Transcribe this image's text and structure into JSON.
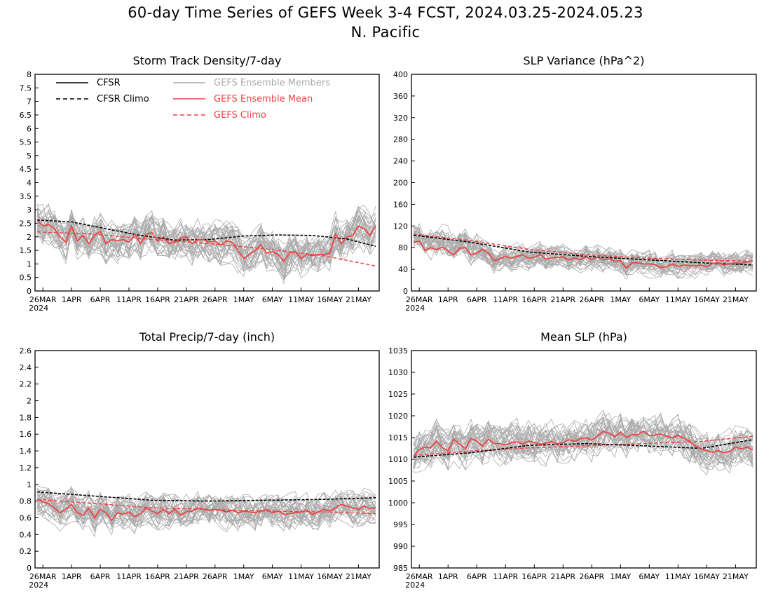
{
  "header": {
    "title_line1": "60-day Time Series of GEFS Week 3-4 FCST, 2024.03.25-2024.05.23",
    "title_line2": "N. Pacific"
  },
  "colors": {
    "cfsr": "#000000",
    "members": "#aaaaaa",
    "ens_mean": "#ee4444",
    "gefs_climo": "#ee4444"
  },
  "legend": {
    "cfsr": "CFSR",
    "cfsr_climo": "CFSR Climo",
    "members": "GEFS Ensemble Members",
    "ens_mean": "GEFS Ensemble Mean",
    "gefs_climo": "GEFS Climo"
  },
  "chart_data": [
    {
      "id": "storm",
      "type": "line",
      "title": "Storm Track Density/7-day",
      "x_ticks": [
        "26MAR",
        "1APR",
        "6APR",
        "11APR",
        "16APR",
        "21APR",
        "26APR",
        "1MAY",
        "6MAY",
        "11MAY",
        "16MAY",
        "21MAY"
      ],
      "x_year_label": "2024",
      "ylim": [
        0,
        8
      ],
      "y_ticks": [
        "0",
        "0.5",
        "1",
        "1.5",
        "2",
        "2.5",
        "3",
        "3.5",
        "4",
        "4.5",
        "5",
        "5.5",
        "6",
        "6.5",
        "7",
        "7.5",
        "8"
      ],
      "member_count": 31,
      "cfsr_climo": [
        [
          0,
          2.62
        ],
        [
          6,
          2.55
        ],
        [
          12,
          2.3
        ],
        [
          18,
          2.05
        ],
        [
          24,
          1.88
        ],
        [
          30,
          1.9
        ],
        [
          36,
          2.03
        ],
        [
          42,
          2.07
        ],
        [
          48,
          2.05
        ],
        [
          54,
          1.92
        ],
        [
          59,
          1.65
        ]
      ],
      "gefs_climo": [
        [
          0,
          2.18
        ],
        [
          10,
          2.1
        ],
        [
          20,
          1.9
        ],
        [
          30,
          1.75
        ],
        [
          40,
          1.55
        ],
        [
          50,
          1.3
        ],
        [
          59,
          0.92
        ]
      ],
      "ens_mean": [
        2.6,
        2.4,
        2.45,
        2.3,
        2.0,
        1.8,
        2.4,
        1.85,
        2.05,
        1.75,
        2.05,
        2.2,
        1.75,
        1.9,
        1.85,
        1.9,
        1.8,
        2.1,
        1.75,
        2.1,
        2.15,
        1.85,
        2.0,
        1.75,
        1.8,
        1.95,
        2.0,
        1.75,
        1.9,
        1.9,
        1.8,
        1.85,
        1.7,
        1.85,
        1.8,
        1.5,
        1.2,
        1.35,
        1.5,
        1.7,
        1.4,
        1.45,
        1.35,
        1.1,
        1.4,
        1.45,
        1.2,
        1.35,
        1.3,
        1.35,
        1.35,
        1.4,
        2.1,
        1.75,
        2.0,
        2.05,
        2.4,
        2.3,
        2.05,
        2.4
      ]
    },
    {
      "id": "slpvar",
      "type": "line",
      "title": "SLP Variance (hPa^2)",
      "x_ticks": [
        "26MAR",
        "1APR",
        "6APR",
        "11APR",
        "16APR",
        "21APR",
        "26APR",
        "1MAY",
        "6MAY",
        "11MAY",
        "16MAY",
        "21MAY"
      ],
      "x_year_label": "2024",
      "ylim": [
        0,
        400
      ],
      "y_ticks": [
        "0",
        "40",
        "80",
        "120",
        "160",
        "200",
        "240",
        "280",
        "320",
        "360",
        "400"
      ],
      "member_count": 31,
      "cfsr_climo": [
        [
          0,
          103
        ],
        [
          10,
          90
        ],
        [
          20,
          72
        ],
        [
          30,
          64
        ],
        [
          40,
          58
        ],
        [
          50,
          52
        ],
        [
          59,
          48
        ]
      ],
      "gefs_climo": [
        [
          0,
          105
        ],
        [
          10,
          93
        ],
        [
          20,
          77
        ],
        [
          30,
          67
        ],
        [
          40,
          61
        ],
        [
          50,
          57
        ],
        [
          59,
          55
        ]
      ],
      "ens_mean": [
        90,
        92,
        75,
        80,
        76,
        81,
        74,
        66,
        79,
        80,
        67,
        70,
        77,
        70,
        56,
        59,
        64,
        60,
        64,
        67,
        60,
        62,
        67,
        59,
        61,
        62,
        63,
        57,
        61,
        58,
        63,
        58,
        62,
        58,
        59,
        55,
        56,
        42,
        52,
        52,
        50,
        50,
        49,
        43,
        45,
        50,
        45,
        48,
        47,
        46,
        48,
        45,
        51,
        52,
        48,
        50,
        52,
        51,
        54,
        55
      ]
    },
    {
      "id": "precip",
      "type": "line",
      "title": "Total Precip/7-day (inch)",
      "x_ticks": [
        "26MAR",
        "1APR",
        "6APR",
        "11APR",
        "16APR",
        "21APR",
        "26APR",
        "1MAY",
        "6MAY",
        "11MAY",
        "16MAY",
        "21MAY"
      ],
      "x_year_label": "2024",
      "ylim": [
        0,
        2.6
      ],
      "y_ticks": [
        "0",
        "0.2",
        "0.4",
        "0.6",
        "0.8",
        "1",
        "1.2",
        "1.4",
        "1.6",
        "1.8",
        "2",
        "2.2",
        "2.4",
        "2.6"
      ],
      "member_count": 31,
      "cfsr_climo": [
        [
          0,
          0.91
        ],
        [
          10,
          0.86
        ],
        [
          20,
          0.81
        ],
        [
          30,
          0.8
        ],
        [
          40,
          0.81
        ],
        [
          50,
          0.82
        ],
        [
          59,
          0.84
        ]
      ],
      "gefs_climo": [
        [
          0,
          0.82
        ],
        [
          10,
          0.77
        ],
        [
          20,
          0.72
        ],
        [
          30,
          0.7
        ],
        [
          40,
          0.68
        ],
        [
          50,
          0.67
        ],
        [
          59,
          0.65
        ]
      ],
      "ens_mean": [
        0.82,
        0.79,
        0.77,
        0.72,
        0.66,
        0.7,
        0.76,
        0.66,
        0.63,
        0.72,
        0.6,
        0.7,
        0.66,
        0.57,
        0.66,
        0.64,
        0.67,
        0.61,
        0.65,
        0.72,
        0.68,
        0.65,
        0.7,
        0.65,
        0.7,
        0.63,
        0.67,
        0.68,
        0.72,
        0.7,
        0.69,
        0.7,
        0.69,
        0.67,
        0.69,
        0.66,
        0.68,
        0.67,
        0.66,
        0.68,
        0.7,
        0.66,
        0.68,
        0.64,
        0.65,
        0.66,
        0.67,
        0.69,
        0.64,
        0.67,
        0.7,
        0.68,
        0.72,
        0.76,
        0.74,
        0.72,
        0.7,
        0.74,
        0.71,
        0.72
      ]
    },
    {
      "id": "meanslp",
      "type": "line",
      "title": "Mean SLP (hPa)",
      "x_ticks": [
        "26MAR",
        "1APR",
        "6APR",
        "11APR",
        "16APR",
        "21APR",
        "26APR",
        "1MAY",
        "6MAY",
        "11MAY",
        "16MAY",
        "21MAY"
      ],
      "x_year_label": "2024",
      "ylim": [
        985,
        1035
      ],
      "y_ticks": [
        "985",
        "990",
        "995",
        "1000",
        "1005",
        "1010",
        "1015",
        "1020",
        "1025",
        "1030",
        "1035"
      ],
      "member_count": 31,
      "cfsr_climo": [
        [
          0,
          1010.5
        ],
        [
          10,
          1011.5
        ],
        [
          20,
          1013.2
        ],
        [
          30,
          1013.6
        ],
        [
          40,
          1013.1
        ],
        [
          50,
          1012.5
        ],
        [
          59,
          1014.5
        ]
      ],
      "gefs_climo": [
        [
          0,
          1010.9
        ],
        [
          10,
          1011.9
        ],
        [
          20,
          1012.6
        ],
        [
          30,
          1013.1
        ],
        [
          40,
          1013.6
        ],
        [
          50,
          1014.1
        ],
        [
          59,
          1015.3
        ]
      ],
      "ens_mean": [
        1010.8,
        1012.2,
        1012.8,
        1012.6,
        1014.2,
        1012.7,
        1011.9,
        1014.6,
        1013.5,
        1012.5,
        1014.8,
        1014.2,
        1013.0,
        1014.6,
        1013.7,
        1013.6,
        1013.3,
        1013.8,
        1014.0,
        1013.5,
        1014.2,
        1013.8,
        1013.4,
        1013.7,
        1014.1,
        1013.5,
        1013.8,
        1014.5,
        1014.1,
        1014.7,
        1015.0,
        1014.4,
        1015.3,
        1016.4,
        1016.0,
        1015.2,
        1016.2,
        1015.0,
        1015.7,
        1015.6,
        1016.5,
        1015.4,
        1015.6,
        1015.8,
        1015.3,
        1015.0,
        1015.5,
        1014.8,
        1014.2,
        1013.1,
        1012.3,
        1012.0,
        1011.6,
        1012.0,
        1011.5,
        1011.8,
        1012.8,
        1012.4,
        1012.8,
        1012.1
      ]
    }
  ]
}
